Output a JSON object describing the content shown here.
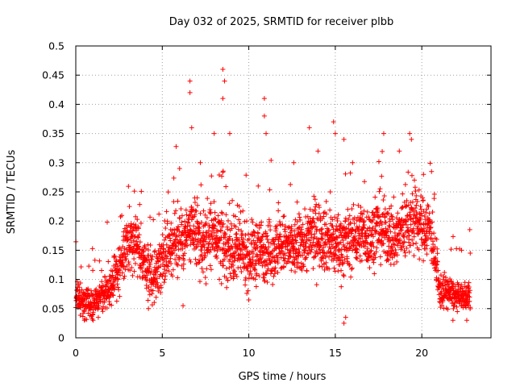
{
  "chart_data": {
    "type": "scatter",
    "title": "Day 032 of 2025, SRMTID for receiver plbb",
    "xlabel": "GPS time / hours",
    "ylabel": "SRMTID / TECUs",
    "xlim": [
      0,
      24
    ],
    "ylim": [
      0,
      0.5
    ],
    "x_ticks": [
      0,
      5,
      10,
      15,
      20
    ],
    "y_ticks": [
      0,
      0.05,
      0.1,
      0.15,
      0.2,
      0.25,
      0.3,
      0.35,
      0.4,
      0.45,
      0.5
    ],
    "x_tick_labels": [
      "0",
      "5",
      "10",
      "15",
      "20"
    ],
    "y_tick_labels": [
      "0",
      "0.05",
      "0.1",
      "0.15",
      "0.2",
      "0.25",
      "0.3",
      "0.35",
      "0.4",
      "0.45",
      "0.5"
    ],
    "grid": true,
    "marker": "+",
    "series": [
      {
        "name": "SRMTID",
        "color": "#ff0000",
        "envelope": {
          "x": [
            0.0,
            0.5,
            1.0,
            1.5,
            2.0,
            2.5,
            3.0,
            3.5,
            4.0,
            4.5,
            5.0,
            5.5,
            6.0,
            6.5,
            7.0,
            7.5,
            8.0,
            8.5,
            9.0,
            9.5,
            10.0,
            10.5,
            11.0,
            11.5,
            12.0,
            12.5,
            13.0,
            13.5,
            14.0,
            14.5,
            15.0,
            15.5,
            16.0,
            16.5,
            17.0,
            17.5,
            18.0,
            18.5,
            19.0,
            19.5,
            20.0,
            20.5,
            21.0,
            21.5,
            22.0,
            22.5,
            22.8
          ],
          "center": [
            0.07,
            0.06,
            0.06,
            0.07,
            0.09,
            0.12,
            0.16,
            0.17,
            0.12,
            0.1,
            0.14,
            0.16,
            0.17,
            0.18,
            0.17,
            0.16,
            0.18,
            0.16,
            0.15,
            0.15,
            0.14,
            0.15,
            0.15,
            0.15,
            0.16,
            0.15,
            0.16,
            0.17,
            0.18,
            0.17,
            0.16,
            0.16,
            0.17,
            0.18,
            0.17,
            0.19,
            0.18,
            0.17,
            0.19,
            0.2,
            0.19,
            0.19,
            0.08,
            0.08,
            0.07,
            0.07,
            0.07
          ],
          "spread": [
            0.02,
            0.02,
            0.02,
            0.025,
            0.03,
            0.04,
            0.04,
            0.04,
            0.035,
            0.04,
            0.045,
            0.05,
            0.05,
            0.05,
            0.05,
            0.05,
            0.05,
            0.05,
            0.05,
            0.05,
            0.045,
            0.05,
            0.045,
            0.045,
            0.045,
            0.045,
            0.045,
            0.05,
            0.05,
            0.05,
            0.05,
            0.05,
            0.045,
            0.045,
            0.045,
            0.05,
            0.05,
            0.05,
            0.05,
            0.05,
            0.045,
            0.045,
            0.025,
            0.025,
            0.02,
            0.02,
            0.02
          ],
          "approx_point_count": 2600
        },
        "peaks": [
          {
            "x": 6.6,
            "y": 0.44
          },
          {
            "x": 6.6,
            "y": 0.42
          },
          {
            "x": 6.7,
            "y": 0.36
          },
          {
            "x": 8.5,
            "y": 0.46
          },
          {
            "x": 8.6,
            "y": 0.44
          },
          {
            "x": 8.5,
            "y": 0.41
          },
          {
            "x": 8.0,
            "y": 0.35
          },
          {
            "x": 8.9,
            "y": 0.35
          },
          {
            "x": 10.9,
            "y": 0.41
          },
          {
            "x": 10.9,
            "y": 0.38
          },
          {
            "x": 11.0,
            "y": 0.35
          },
          {
            "x": 13.5,
            "y": 0.36
          },
          {
            "x": 14.0,
            "y": 0.32
          },
          {
            "x": 14.9,
            "y": 0.37
          },
          {
            "x": 15.0,
            "y": 0.35
          },
          {
            "x": 15.5,
            "y": 0.34
          },
          {
            "x": 17.8,
            "y": 0.35
          },
          {
            "x": 19.3,
            "y": 0.35
          },
          {
            "x": 19.4,
            "y": 0.34
          },
          {
            "x": 6.0,
            "y": 0.29
          },
          {
            "x": 7.2,
            "y": 0.3
          },
          {
            "x": 12.6,
            "y": 0.3
          },
          {
            "x": 16.0,
            "y": 0.3
          },
          {
            "x": 18.7,
            "y": 0.32
          },
          {
            "x": 20.1,
            "y": 0.28
          },
          {
            "x": 3.1,
            "y": 0.225
          },
          {
            "x": 22.3,
            "y": 0.15
          },
          {
            "x": 22.8,
            "y": 0.145
          }
        ],
        "troughs": [
          {
            "x": 0.5,
            "y": 0.03
          },
          {
            "x": 1.0,
            "y": 0.03
          },
          {
            "x": 1.3,
            "y": 0.035
          },
          {
            "x": 4.2,
            "y": 0.05
          },
          {
            "x": 6.2,
            "y": 0.055
          },
          {
            "x": 10.0,
            "y": 0.065
          },
          {
            "x": 15.5,
            "y": 0.025
          },
          {
            "x": 15.6,
            "y": 0.035
          },
          {
            "x": 21.8,
            "y": 0.03
          },
          {
            "x": 22.6,
            "y": 0.03
          }
        ]
      }
    ]
  }
}
